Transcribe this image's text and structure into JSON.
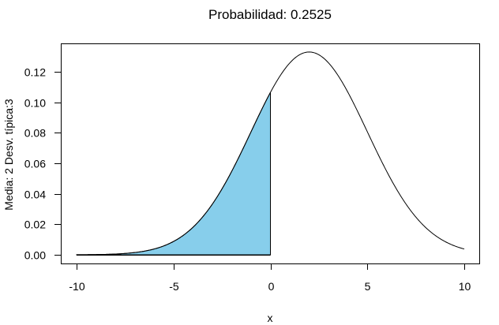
{
  "chart_data": {
    "type": "area",
    "title": "Probabilidad: 0.2525",
    "xlabel": "x",
    "ylabel": "Media: 2 Desv. típica:3",
    "distribution": {
      "family": "normal",
      "mean": 2,
      "sd": 3
    },
    "shaded_region": {
      "from": -10,
      "to": 0,
      "probability": 0.2525,
      "color": "#87CEEB"
    },
    "xlim": [
      -10.8,
      10.8
    ],
    "ylim": [
      -0.006,
      0.137
    ],
    "x_ticks": [
      -10,
      -5,
      0,
      5,
      10
    ],
    "x_tick_labels": [
      "-10",
      "-5",
      "0",
      "5",
      "10"
    ],
    "y_ticks": [
      0.0,
      0.02,
      0.04,
      0.06,
      0.08,
      0.1,
      0.12
    ],
    "y_tick_labels": [
      "0.00",
      "0.02",
      "0.04",
      "0.06",
      "0.08",
      "0.10",
      "0.12"
    ],
    "x": [
      -10,
      -9,
      -8,
      -7,
      -6,
      -5,
      -4,
      -3,
      -2,
      -1,
      0,
      1,
      2,
      3,
      4,
      5,
      6,
      7,
      8,
      9,
      10
    ],
    "values": [
      0.0,
      0.0002,
      0.0005,
      0.0015,
      0.0038,
      0.0087,
      0.018,
      0.0332,
      0.0547,
      0.0807,
      0.1065,
      0.1258,
      0.133,
      0.1258,
      0.1065,
      0.0807,
      0.0547,
      0.0332,
      0.018,
      0.0087,
      0.0038
    ],
    "grid": false,
    "legend": null,
    "line_color": "#000000"
  }
}
